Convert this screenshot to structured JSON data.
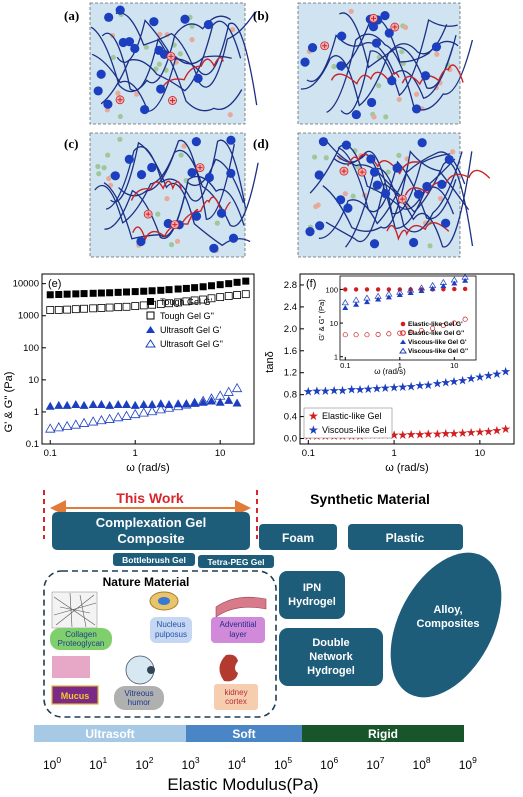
{
  "panels": {
    "a": "(a)",
    "b": "(b)",
    "c": "(c)",
    "d": "(d)",
    "e": "(e)",
    "f": "(f)"
  },
  "chart_e": {
    "ylabel": "G' & G'' (Pa)",
    "xlabel": "ω (rad/s)",
    "yticks": [
      "0.1",
      "1",
      "10",
      "100",
      "1000",
      "10000"
    ],
    "xticks": [
      "0.1",
      "1",
      "10"
    ],
    "legend": [
      "Tough Gel G'",
      "Tough Gel G''",
      "Ultrasoft Gel G'",
      "Ultrasoft Gel G''"
    ]
  },
  "chart_f": {
    "ylabel": "tanδ",
    "xlabel": "ω (rad/s)",
    "yticks": [
      "0.0",
      "0.4",
      "0.8",
      "1.2",
      "1.6",
      "2.0",
      "2.4",
      "2.8"
    ],
    "xticks": [
      "0.1",
      "1",
      "10"
    ],
    "legend": [
      "Elastic-like Gel",
      "Viscous-like Gel"
    ],
    "inset": {
      "ylabel": "G' & G'' (Pa)",
      "xlabel": "ω (rad/s)",
      "yticks": [
        "1",
        "10",
        "100"
      ],
      "xticks": [
        "0.1",
        "1",
        "10"
      ],
      "legend": [
        "Elastic-like Gel G'",
        "Elastic-like Gel G''",
        "Viscous-like Gel G'",
        "Viscous-like Gel G''"
      ]
    }
  },
  "chart_data": [
    {
      "type": "scatter",
      "panel": "(e)",
      "xscale": "log",
      "yscale": "log",
      "xlim": [
        0.08,
        25
      ],
      "ylim": [
        0.1,
        20000
      ],
      "series": [
        {
          "name": "Tough Gel G'",
          "x": [
            0.1,
            0.126,
            0.158,
            0.2,
            0.25,
            0.32,
            0.4,
            0.5,
            0.63,
            0.79,
            1,
            1.26,
            1.58,
            2,
            2.5,
            3.2,
            4,
            5,
            6.3,
            7.9,
            10,
            12.6,
            15.8,
            20
          ],
          "y": [
            4500,
            4600,
            4700,
            4800,
            4900,
            5000,
            5100,
            5200,
            5350,
            5500,
            5650,
            5800,
            6000,
            6200,
            6500,
            6800,
            7100,
            7500,
            8000,
            8600,
            9300,
            10000,
            11000,
            12000
          ]
        },
        {
          "name": "Tough Gel G''",
          "x": [
            0.1,
            0.126,
            0.158,
            0.2,
            0.25,
            0.32,
            0.4,
            0.5,
            0.63,
            0.79,
            1,
            1.26,
            1.58,
            2,
            2.5,
            3.2,
            4,
            5,
            6.3,
            7.9,
            10,
            12.6,
            15.8,
            20
          ],
          "y": [
            1500,
            1520,
            1550,
            1600,
            1650,
            1700,
            1750,
            1800,
            1850,
            1900,
            2000,
            2100,
            2200,
            2300,
            2450,
            2600,
            2800,
            3000,
            3200,
            3500,
            3800,
            4100,
            4400,
            4700
          ]
        },
        {
          "name": "Ultrasoft Gel G'",
          "x": [
            0.1,
            0.126,
            0.158,
            0.2,
            0.25,
            0.32,
            0.4,
            0.5,
            0.63,
            0.79,
            1,
            1.26,
            1.58,
            2,
            2.5,
            3.2,
            4,
            5,
            6.3,
            7.9,
            10,
            12.6,
            15.8
          ],
          "y": [
            1.5,
            1.6,
            1.6,
            1.7,
            1.6,
            1.7,
            1.7,
            1.6,
            1.7,
            1.7,
            1.6,
            1.7,
            1.7,
            1.8,
            1.7,
            1.8,
            1.8,
            1.9,
            2.0,
            2.2,
            2.0,
            2.3,
            1.9
          ]
        },
        {
          "name": "Ultrasoft Gel G''",
          "x": [
            0.1,
            0.126,
            0.158,
            0.2,
            0.25,
            0.32,
            0.4,
            0.5,
            0.63,
            0.79,
            1,
            1.26,
            1.58,
            2,
            2.5,
            3.2,
            4,
            5,
            6.3,
            7.9,
            10,
            12.6,
            15.8
          ],
          "y": [
            0.3,
            0.33,
            0.36,
            0.4,
            0.45,
            0.5,
            0.55,
            0.6,
            0.68,
            0.75,
            0.85,
            0.95,
            1.05,
            1.2,
            1.35,
            1.5,
            1.7,
            1.9,
            2.2,
            2.6,
            3.2,
            4.2,
            5.5
          ]
        }
      ]
    },
    {
      "type": "scatter",
      "panel": "(f)",
      "xscale": "log",
      "yscale": "linear",
      "xlim": [
        0.08,
        25
      ],
      "ylim": [
        -0.1,
        3.0
      ],
      "series": [
        {
          "name": "Elastic-like Gel",
          "x": [
            0.1,
            0.126,
            0.158,
            0.2,
            0.25,
            0.32,
            0.4,
            0.5,
            0.63,
            0.79,
            1,
            1.26,
            1.58,
            2,
            2.5,
            3.2,
            4,
            5,
            6.3,
            7.9,
            10,
            12.6,
            15.8,
            20
          ],
          "y": [
            0.05,
            0.05,
            0.05,
            0.05,
            0.05,
            0.05,
            0.05,
            0.06,
            0.06,
            0.06,
            0.06,
            0.06,
            0.07,
            0.07,
            0.08,
            0.08,
            0.09,
            0.09,
            0.1,
            0.11,
            0.12,
            0.13,
            0.15,
            0.17
          ]
        },
        {
          "name": "Viscous-like Gel",
          "x": [
            0.1,
            0.126,
            0.158,
            0.2,
            0.25,
            0.32,
            0.4,
            0.5,
            0.63,
            0.79,
            1,
            1.26,
            1.58,
            2,
            2.5,
            3.2,
            4,
            5,
            6.3,
            7.9,
            10,
            12.6,
            15.8,
            20
          ],
          "y": [
            0.86,
            0.87,
            0.87,
            0.88,
            0.88,
            0.89,
            0.89,
            0.9,
            0.91,
            0.92,
            0.93,
            0.94,
            0.95,
            0.97,
            0.98,
            1.0,
            1.02,
            1.04,
            1.06,
            1.09,
            1.12,
            1.15,
            1.18,
            1.22
          ]
        }
      ]
    },
    {
      "type": "scatter",
      "panel": "(f) inset",
      "xscale": "log",
      "yscale": "log",
      "xlim": [
        0.08,
        25
      ],
      "ylim": [
        0.8,
        250
      ],
      "series": [
        {
          "name": "Elastic-like Gel G'",
          "x": [
            0.1,
            0.158,
            0.25,
            0.4,
            0.63,
            1,
            1.58,
            2.5,
            4,
            6.3,
            10,
            15.8
          ],
          "y": [
            100,
            100,
            100,
            100,
            100,
            100,
            100,
            100,
            100,
            101,
            102,
            103
          ]
        },
        {
          "name": "Elastic-like Gel G''",
          "x": [
            0.1,
            0.158,
            0.25,
            0.4,
            0.63,
            1,
            1.58,
            2.5,
            4,
            6.3,
            10,
            15.8
          ],
          "y": [
            4.5,
            4.5,
            4.5,
            4.6,
            4.8,
            5,
            5.4,
            6,
            7,
            8.5,
            10,
            13
          ]
        },
        {
          "name": "Viscous-like Gel G'",
          "x": [
            0.1,
            0.158,
            0.25,
            0.4,
            0.63,
            1,
            1.58,
            2.5,
            4,
            6.3,
            10,
            15.8
          ],
          "y": [
            28,
            35,
            42,
            50,
            58,
            68,
            78,
            90,
            105,
            125,
            150,
            180
          ]
        },
        {
          "name": "Viscous-like Gel G''",
          "x": [
            0.1,
            0.158,
            0.25,
            0.4,
            0.63,
            1,
            1.58,
            2.5,
            4,
            6.3,
            10,
            15.8
          ],
          "y": [
            40,
            48,
            55,
            62,
            72,
            82,
            95,
            110,
            130,
            160,
            190,
            230
          ]
        }
      ]
    }
  ],
  "diagram": {
    "this_work": "This Work",
    "synthetic_title": "Synthetic Material",
    "complexation": "Complexation Gel Composite",
    "foam": "Foam",
    "plastic": "Plastic",
    "bottlebrush": "Bottlebrush Gel",
    "tetra_peg": "Tetra-PEG Gel",
    "nature_title": "Nature Material",
    "ipn": "IPN Hydrogel",
    "double_network": "Double Network Hydrogel",
    "alloy": "Alloy, Composites",
    "collagen": "Collagen Proteoglycan",
    "nucleus": "Nucleus pulposus",
    "adventitial": "Adventitial layer",
    "mucus": "Mucus",
    "vitreous": "Vitreous humor",
    "kidney": "kidney cortex",
    "bar_ultrasoft": "Ultrasoft",
    "bar_soft": "Soft",
    "bar_rigid": "Rigid",
    "axis_label": "Elastic Modulus(Pa)",
    "axis_exponents": [
      "0",
      "1",
      "2",
      "3",
      "4",
      "5",
      "6",
      "7",
      "8",
      "9"
    ],
    "axis_base": "10"
  },
  "colors": {
    "panel_bg": "#cfe4f0",
    "dark_blue": "#1b2f86",
    "bead_blue": "#1c3fc0",
    "red": "#c8262c",
    "teal": "#1d5d7a",
    "light_blue_bar": "#a6c9e6",
    "mid_blue_bar": "#4a86c6",
    "dark_green_bar": "#18552a"
  }
}
